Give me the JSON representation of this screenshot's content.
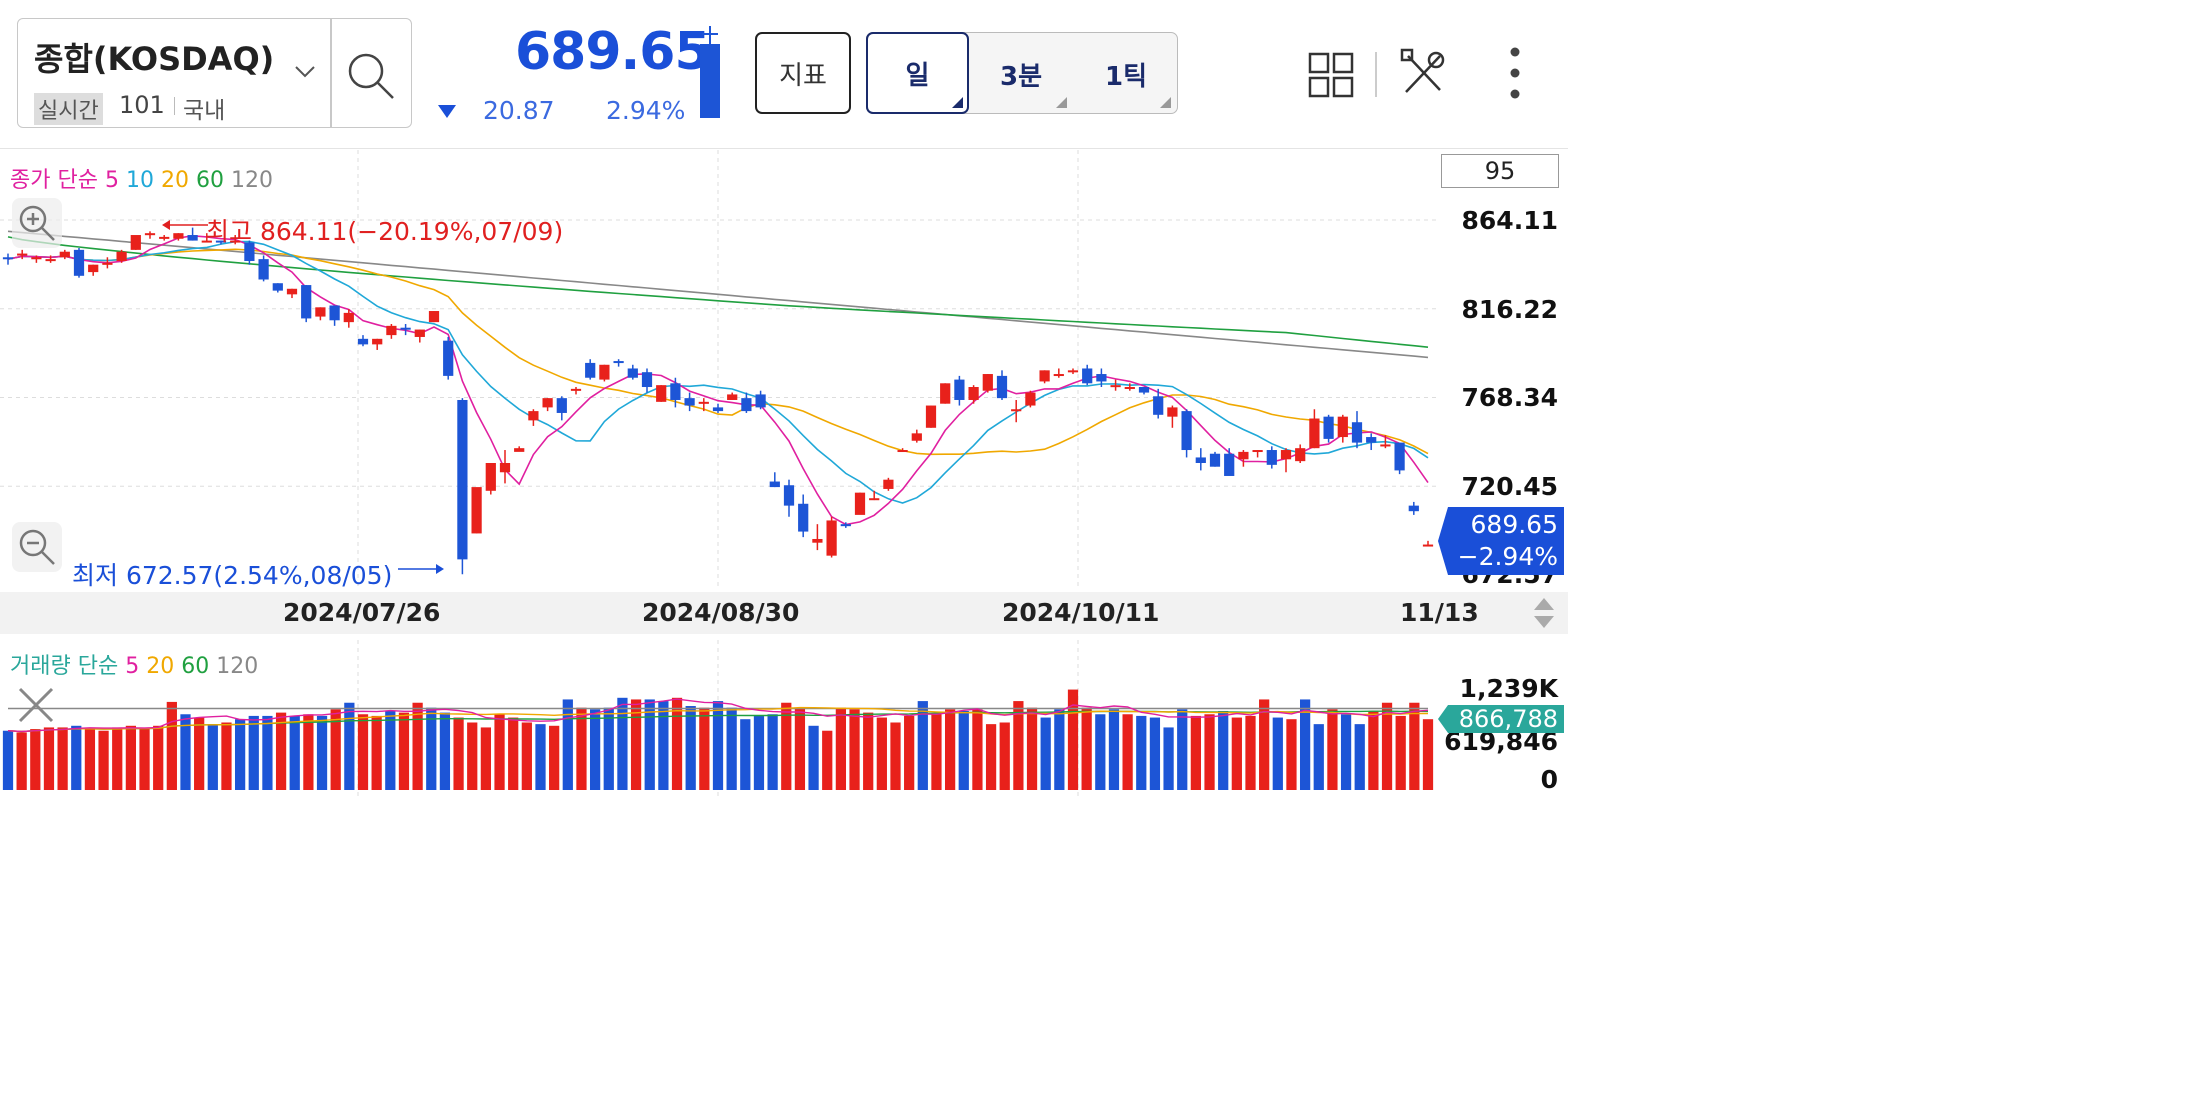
{
  "header": {
    "symbol": "종합(KOSDAQ)",
    "realtime": "실시간",
    "tick": "101",
    "region": "국내",
    "price": "689.65",
    "change": "20.87",
    "change_pct": "2.94%",
    "indicator_btn": "지표",
    "period_day": "일",
    "period_3min": "3분",
    "period_1tick": "1틱"
  },
  "colors": {
    "up": "#e8211b",
    "down": "#1d55d6",
    "price": "#1a4fd8",
    "ma5": "#e020a0",
    "ma10": "#20a8d8",
    "ma20": "#f0a800",
    "ma60": "#20a040",
    "ma120": "#888888"
  },
  "chart": {
    "legend": {
      "prefix": "종가 단순",
      "ma5": "5",
      "ma10": "10",
      "ma20": "20",
      "ma60": "60",
      "ma120": "120"
    },
    "count": "95",
    "high_label": "최고 864.11(−20.19%,07/09)",
    "low_label": "최저 672.57(2.54%,08/05)",
    "y_labels": [
      "864.11",
      "816.22",
      "768.34",
      "720.45",
      "672.57"
    ],
    "current_tag": {
      "price": "689.65",
      "pct": "−2.94%"
    },
    "x_labels": [
      "2024/07/26",
      "2024/08/30",
      "2024/10/11",
      "11/13"
    ]
  },
  "volume": {
    "legend": {
      "prefix": "거래량 단순",
      "ma5": "5",
      "ma20": "20",
      "ma60": "60",
      "ma120": "120"
    },
    "y_labels": [
      "1,239K",
      "619,846",
      "0"
    ],
    "current_tag": "866,788"
  },
  "chart_data": {
    "type": "candlestick",
    "candles_ohlc": [
      [
        844,
        846,
        840,
        843
      ],
      [
        845,
        848,
        843,
        846
      ],
      [
        843,
        845,
        841,
        844
      ],
      [
        843,
        845,
        841,
        843
      ],
      [
        844,
        848,
        843,
        847
      ],
      [
        848,
        849,
        833,
        834
      ],
      [
        836,
        840,
        834,
        840
      ],
      [
        841,
        844,
        838,
        841
      ],
      [
        842,
        848,
        841,
        847
      ],
      [
        848,
        855,
        848,
        856
      ],
      [
        857,
        858,
        854,
        857
      ],
      [
        855,
        856,
        853,
        855
      ],
      [
        854,
        857,
        853,
        857
      ],
      [
        856,
        860,
        853,
        853
      ],
      [
        853,
        857,
        852,
        853
      ],
      [
        853,
        853,
        851,
        852
      ],
      [
        852,
        856,
        851,
        853
      ],
      [
        852,
        853,
        840,
        842
      ],
      [
        843,
        845,
        831,
        832
      ],
      [
        830,
        830,
        825,
        826
      ],
      [
        824,
        827,
        822,
        827
      ],
      [
        829,
        829,
        809,
        811
      ],
      [
        812,
        817,
        810,
        817
      ],
      [
        818,
        818,
        807,
        810
      ],
      [
        809,
        816,
        806,
        814
      ],
      [
        800,
        802,
        796,
        797
      ],
      [
        797,
        800,
        794,
        800
      ],
      [
        802,
        808,
        800,
        807
      ],
      [
        806,
        808,
        802,
        805
      ],
      [
        801,
        805,
        798,
        805
      ],
      [
        809,
        815,
        809,
        815
      ],
      [
        799,
        801,
        778,
        780
      ],
      [
        767,
        768,
        673,
        681
      ],
      [
        695,
        718,
        695,
        720
      ],
      [
        718,
        733,
        716,
        733
      ],
      [
        728,
        740,
        722,
        733
      ],
      [
        739,
        742,
        740,
        741
      ],
      [
        756,
        762,
        753,
        761
      ],
      [
        763,
        768,
        761,
        768
      ],
      [
        768,
        769,
        756,
        760
      ],
      [
        772,
        774,
        770,
        773
      ],
      [
        787,
        789,
        778,
        779
      ],
      [
        778,
        786,
        777,
        786
      ],
      [
        788,
        789,
        785,
        787
      ],
      [
        784,
        786,
        778,
        779
      ],
      [
        782,
        784,
        771,
        774
      ],
      [
        766,
        775,
        766,
        775
      ],
      [
        776,
        779,
        763,
        767
      ],
      [
        768,
        771,
        761,
        764
      ],
      [
        765,
        768,
        761,
        766
      ],
      [
        763,
        765,
        760,
        761
      ],
      [
        767,
        771,
        767,
        770
      ],
      [
        768,
        771,
        760,
        761
      ],
      [
        770,
        772,
        762,
        763
      ],
      [
        723,
        728,
        720,
        720
      ],
      [
        721,
        724,
        704,
        710
      ],
      [
        711,
        716,
        693,
        696
      ],
      [
        690,
        700,
        686,
        692
      ],
      [
        683,
        704,
        682,
        702
      ],
      [
        700,
        701,
        698,
        699
      ],
      [
        705,
        717,
        706,
        717
      ],
      [
        714,
        718,
        713,
        714
      ],
      [
        719,
        725,
        718,
        724
      ],
      [
        740,
        741,
        739,
        740
      ],
      [
        745,
        751,
        744,
        749
      ],
      [
        752,
        764,
        752,
        764
      ],
      [
        765,
        776,
        765,
        776
      ],
      [
        778,
        780,
        764,
        767
      ],
      [
        767,
        775,
        765,
        774
      ],
      [
        772,
        781,
        771,
        781
      ],
      [
        780,
        783,
        767,
        768
      ],
      [
        762,
        767,
        755,
        762
      ],
      [
        764,
        772,
        763,
        771
      ],
      [
        777,
        783,
        776,
        783
      ],
      [
        780,
        784,
        779,
        781
      ],
      [
        782,
        784,
        781,
        783
      ],
      [
        784,
        786,
        775,
        776
      ],
      [
        781,
        784,
        774,
        777
      ],
      [
        775,
        778,
        772,
        775
      ],
      [
        773,
        776,
        772,
        774
      ],
      [
        774,
        774,
        770,
        771
      ],
      [
        769,
        773,
        757,
        759
      ],
      [
        758,
        764,
        752,
        763
      ],
      [
        761,
        762,
        736,
        740
      ],
      [
        736,
        741,
        729,
        733
      ],
      [
        738,
        739,
        731,
        731
      ],
      [
        738,
        741,
        727,
        726
      ],
      [
        735,
        740,
        731,
        739
      ],
      [
        739,
        740,
        736,
        740
      ],
      [
        740,
        742,
        730,
        732
      ],
      [
        735,
        741,
        728,
        740
      ],
      [
        734,
        743,
        733,
        741
      ],
      [
        741,
        762,
        741,
        757
      ],
      [
        758,
        759,
        744,
        746
      ],
      [
        747,
        759,
        744,
        758
      ],
      [
        755,
        761,
        741,
        744
      ],
      [
        747,
        749,
        740,
        744
      ],
      [
        742,
        748,
        741,
        743
      ],
      [
        744,
        744,
        727,
        729
      ],
      [
        710,
        712,
        705,
        707
      ],
      [
        689,
        691,
        688,
        689
      ]
    ],
    "volume_k": [
      720,
      700,
      740,
      760,
      760,
      780,
      740,
      720,
      760,
      780,
      760,
      780,
      1070,
      920,
      880,
      800,
      820,
      860,
      900,
      900,
      940,
      900,
      920,
      900,
      980,
      1060,
      920,
      900,
      960,
      940,
      1060,
      1000,
      940,
      880,
      820,
      760,
      920,
      880,
      820,
      800,
      780,
      1100,
      1000,
      980,
      1000,
      1120,
      1100,
      1100,
      1080,
      1120,
      1020,
      1000,
      1080,
      1000,
      860,
      900,
      920,
      1060,
      1000,
      780,
      720,
      1000,
      980,
      940,
      880,
      820,
      900,
      1080,
      920,
      980,
      960,
      980,
      800,
      820,
      1080,
      1000,
      880,
      980,
      1220,
      1000,
      920,
      980,
      920,
      900,
      880,
      760,
      980,
      900,
      920,
      960,
      880,
      900,
      1100,
      880,
      860,
      1100,
      800,
      980,
      920,
      800,
      960,
      1060,
      900,
      1060,
      860
    ]
  }
}
